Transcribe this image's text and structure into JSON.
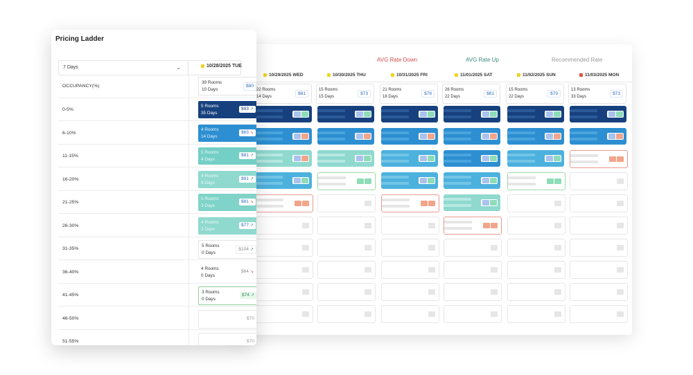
{
  "app": {
    "title": "Pricing Ladder"
  },
  "controls": {
    "days_select": "7 Days",
    "chevron": "chevron-down-icon"
  },
  "legend": {
    "down": "AVG Rate Down",
    "up": "AVG Rate Up",
    "recommended": "Recommended Rate"
  },
  "colors": {
    "navy": "#17417e",
    "blue": "#2d8fd1",
    "teal": "#74cfc6",
    "lightteal": "#8fd9cf",
    "down": "#d34b4b",
    "up": "#3a8a7a",
    "flag_yellow": "#f2d21c",
    "flag_red": "#e0513f"
  },
  "foreground": {
    "date": "10/28/2025 TUE",
    "header_cell": {
      "rooms": "39 Rooms",
      "days": "10 Days",
      "price": "$80"
    },
    "rows": [
      {
        "label": "OCCUPANCY(%)"
      },
      {
        "label": "0-5%",
        "rooms": "5 Rooms",
        "days": "35 Days",
        "price": "$93"
      },
      {
        "label": "6-10%",
        "rooms": "4 Rooms",
        "days": "14 Days",
        "price": "$63"
      },
      {
        "label": "11-15%",
        "rooms": "5 Rooms",
        "days": "4 Days",
        "price": "$81"
      },
      {
        "label": "16-20%",
        "rooms": "4 Rooms",
        "days": "9 Days",
        "price": "$91"
      },
      {
        "label": "21-25%",
        "rooms": "5 Rooms",
        "days": "3 Days",
        "price": "$81"
      },
      {
        "label": "26-30%",
        "rooms": "4 Rooms",
        "days": "2 Days",
        "price": "$77"
      },
      {
        "label": "31-35%",
        "rooms": "5 Rooms",
        "days": "0 Days",
        "price": "$104"
      },
      {
        "label": "36-40%",
        "rooms": "4 Rooms",
        "days": "0 Days",
        "price": "$64"
      },
      {
        "label": "41-45%",
        "rooms": "3 Rooms",
        "days": "0 Days",
        "price": "$74"
      },
      {
        "label": "46-50%",
        "price": "$70"
      },
      {
        "label": "51-55%",
        "price": "$70"
      }
    ]
  },
  "background": {
    "dates": [
      {
        "label": "10/29/2025 WED",
        "flag": "yellow",
        "rooms": "22 Rooms",
        "days": "14 Days",
        "price": "$81"
      },
      {
        "label": "10/30/2025 THU",
        "flag": "yellow",
        "rooms": "15 Rooms",
        "days": "15 Days",
        "price": "$73"
      },
      {
        "label": "10/31/2025 FRI",
        "flag": "yellow",
        "rooms": "21 Rooms",
        "days": "18 Days",
        "price": "$78"
      },
      {
        "label": "11/01/2025 SAT",
        "flag": "yellow",
        "rooms": "26 Rooms",
        "days": "22 Days",
        "price": "$81"
      },
      {
        "label": "11/02/2025 SUN",
        "flag": "yellow",
        "rooms": "15 Rooms",
        "days": "22 Days",
        "price": "$79"
      },
      {
        "label": "11/03/2025 MON",
        "flag": "red",
        "rooms": "13 Rooms",
        "days": "33 Days",
        "price": "$73"
      }
    ]
  }
}
